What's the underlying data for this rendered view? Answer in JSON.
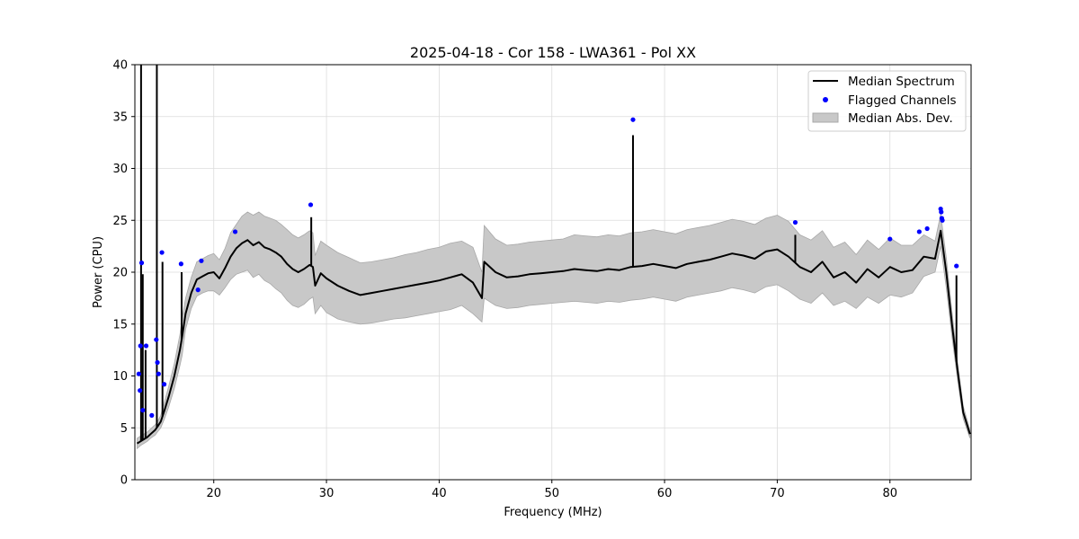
{
  "chart_data": {
    "type": "line",
    "title": "2025-04-18 - Cor 158 - LWA361 - Pol XX",
    "xlabel": "Frequency (MHz)",
    "ylabel": "Power (CPU)",
    "xlim": [
      13,
      87.2
    ],
    "ylim": [
      0,
      40
    ],
    "xticks": [
      20,
      30,
      40,
      50,
      60,
      70,
      80
    ],
    "yticks": [
      0,
      5,
      10,
      15,
      20,
      25,
      30,
      35,
      40
    ],
    "grid": true,
    "legend_placement": "top-right",
    "colors": {
      "median": "#000000",
      "flagged": "#0000ff",
      "mad_fill": "#c8c8c8",
      "mad_edge": "#a8a8a8"
    },
    "series": [
      {
        "name": "Median Spectrum",
        "kind": "line",
        "x": [
          13.2,
          13.5,
          13.8,
          14.1,
          14.4,
          14.8,
          15.0,
          15.3,
          15.6,
          16.0,
          16.5,
          17.0,
          17.2,
          17.5,
          18.0,
          18.5,
          19.0,
          19.5,
          20.0,
          20.5,
          21.0,
          21.5,
          22.0,
          22.5,
          23.0,
          23.5,
          24.0,
          24.5,
          25.0,
          25.5,
          26.0,
          26.5,
          27.0,
          27.5,
          28.0,
          28.5,
          28.8,
          29.0,
          29.5,
          30.0,
          31.0,
          32.0,
          33.0,
          34.0,
          35.0,
          36.0,
          37.0,
          38.0,
          39.0,
          40.0,
          41.0,
          42.0,
          43.0,
          43.8,
          44.0,
          45.0,
          46.0,
          47.0,
          48.0,
          49.0,
          50.0,
          51.0,
          52.0,
          53.0,
          54.0,
          55.0,
          56.0,
          57.0,
          58.0,
          59.0,
          60.0,
          61.0,
          62.0,
          63.0,
          64.0,
          65.0,
          66.0,
          67.0,
          68.0,
          69.0,
          70.0,
          71.0,
          72.0,
          73.0,
          74.0,
          75.0,
          76.0,
          77.0,
          78.0,
          79.0,
          80.0,
          81.0,
          82.0,
          83.0,
          84.0,
          84.5,
          85.0,
          85.5,
          86.0,
          86.5,
          87.1
        ],
        "values": [
          3.5,
          3.7,
          3.9,
          4.1,
          4.4,
          4.8,
          5.1,
          5.6,
          6.6,
          8.0,
          10.0,
          12.5,
          13.8,
          16.0,
          18.0,
          19.3,
          19.6,
          19.9,
          20.0,
          19.4,
          20.4,
          21.5,
          22.3,
          22.8,
          23.1,
          22.6,
          22.9,
          22.4,
          22.2,
          21.9,
          21.5,
          20.8,
          20.3,
          20.0,
          20.3,
          20.7,
          20.5,
          18.7,
          19.9,
          19.4,
          18.7,
          18.2,
          17.8,
          18.0,
          18.2,
          18.4,
          18.6,
          18.8,
          19.0,
          19.2,
          19.5,
          19.8,
          19.0,
          17.5,
          21.0,
          20.0,
          19.5,
          19.6,
          19.8,
          19.9,
          20.0,
          20.1,
          20.3,
          20.2,
          20.1,
          20.3,
          20.2,
          20.5,
          20.6,
          20.8,
          20.6,
          20.4,
          20.8,
          21.0,
          21.2,
          21.5,
          21.8,
          21.6,
          21.3,
          22.0,
          22.2,
          21.5,
          20.5,
          20.0,
          21.0,
          19.5,
          20.0,
          19.0,
          20.3,
          19.5,
          20.5,
          20.0,
          20.2,
          21.5,
          21.3,
          24.0,
          20.0,
          15.0,
          10.5,
          6.5,
          4.4
        ]
      },
      {
        "name": "Flagged Channels",
        "kind": "scatter",
        "x": [
          13.35,
          13.45,
          13.5,
          13.6,
          13.7,
          14.0,
          14.5,
          14.9,
          15.0,
          15.1,
          15.4,
          15.6,
          17.1,
          18.6,
          18.9,
          21.9,
          28.6,
          57.2,
          71.6,
          80.0,
          82.6,
          83.3,
          84.5,
          84.55,
          84.6,
          84.65,
          85.9
        ],
        "values": [
          10.2,
          8.6,
          12.9,
          20.9,
          6.7,
          12.9,
          6.2,
          13.5,
          11.3,
          10.2,
          21.9,
          9.2,
          20.8,
          18.3,
          21.1,
          23.9,
          26.5,
          34.7,
          24.8,
          23.2,
          23.9,
          24.2,
          26.1,
          25.8,
          25.2,
          25.0,
          20.6
        ]
      },
      {
        "name": "Median Abs. Dev.",
        "kind": "band",
        "x": [
          13.2,
          13.5,
          13.8,
          14.1,
          14.4,
          14.8,
          15.0,
          15.3,
          15.6,
          16.0,
          16.5,
          17.0,
          17.2,
          17.5,
          18.0,
          18.5,
          19.0,
          19.5,
          20.0,
          20.5,
          21.0,
          21.5,
          22.0,
          22.5,
          23.0,
          23.5,
          24.0,
          24.5,
          25.0,
          25.5,
          26.0,
          26.5,
          27.0,
          27.5,
          28.0,
          28.5,
          28.8,
          29.0,
          29.5,
          30.0,
          31.0,
          32.0,
          33.0,
          34.0,
          35.0,
          36.0,
          37.0,
          38.0,
          39.0,
          40.0,
          41.0,
          42.0,
          43.0,
          43.8,
          44.0,
          45.0,
          46.0,
          47.0,
          48.0,
          49.0,
          50.0,
          51.0,
          52.0,
          53.0,
          54.0,
          55.0,
          56.0,
          57.0,
          58.0,
          59.0,
          60.0,
          61.0,
          62.0,
          63.0,
          64.0,
          65.0,
          66.0,
          67.0,
          68.0,
          69.0,
          70.0,
          71.0,
          72.0,
          73.0,
          74.0,
          75.0,
          76.0,
          77.0,
          78.0,
          79.0,
          80.0,
          81.0,
          82.0,
          83.0,
          84.0,
          84.5,
          85.0,
          85.5,
          86.0,
          86.5,
          87.1
        ],
        "lower": [
          3.0,
          3.3,
          3.5,
          3.7,
          4.0,
          4.3,
          4.6,
          5.0,
          5.8,
          7.0,
          8.8,
          11.0,
          12.0,
          14.5,
          16.5,
          17.7,
          18.0,
          18.2,
          18.2,
          17.8,
          18.5,
          19.3,
          19.8,
          20.0,
          20.2,
          19.5,
          19.8,
          19.2,
          18.9,
          18.4,
          18.0,
          17.3,
          16.8,
          16.6,
          16.9,
          17.4,
          17.6,
          16.0,
          16.8,
          16.1,
          15.5,
          15.2,
          15.0,
          15.1,
          15.3,
          15.5,
          15.6,
          15.8,
          16.0,
          16.2,
          16.4,
          16.8,
          16.0,
          15.2,
          17.5,
          16.8,
          16.5,
          16.6,
          16.8,
          16.9,
          17.0,
          17.1,
          17.2,
          17.1,
          17.0,
          17.2,
          17.1,
          17.3,
          17.4,
          17.6,
          17.4,
          17.2,
          17.6,
          17.8,
          18.0,
          18.2,
          18.5,
          18.3,
          18.0,
          18.6,
          18.8,
          18.2,
          17.4,
          17.0,
          18.0,
          16.8,
          17.2,
          16.5,
          17.6,
          17.0,
          17.8,
          17.6,
          18.0,
          19.6,
          20.0,
          22.5,
          18.5,
          13.8,
          9.6,
          5.9,
          4.0
        ],
        "upper": [
          4.0,
          4.2,
          4.4,
          4.6,
          4.9,
          5.3,
          5.6,
          6.2,
          7.4,
          9.0,
          11.2,
          14.0,
          15.6,
          17.5,
          19.5,
          21.0,
          21.3,
          21.6,
          21.8,
          21.2,
          22.3,
          23.8,
          24.6,
          25.4,
          25.8,
          25.5,
          25.8,
          25.4,
          25.2,
          25.0,
          24.6,
          24.1,
          23.6,
          23.3,
          23.6,
          24.0,
          23.8,
          21.6,
          23.0,
          22.6,
          21.9,
          21.4,
          20.9,
          21.0,
          21.2,
          21.4,
          21.7,
          21.9,
          22.2,
          22.4,
          22.8,
          23.0,
          22.4,
          20.0,
          24.5,
          23.2,
          22.6,
          22.7,
          22.9,
          23.0,
          23.1,
          23.2,
          23.6,
          23.5,
          23.4,
          23.6,
          23.5,
          23.8,
          23.9,
          24.1,
          23.9,
          23.7,
          24.1,
          24.3,
          24.5,
          24.8,
          25.1,
          24.9,
          24.6,
          25.2,
          25.5,
          24.9,
          23.6,
          23.1,
          24.0,
          22.4,
          22.9,
          21.7,
          23.1,
          22.2,
          23.3,
          22.6,
          22.6,
          23.6,
          23.0,
          25.6,
          21.4,
          16.2,
          11.3,
          7.1,
          4.8
        ]
      }
    ],
    "spikes": [
      {
        "x": 13.55,
        "value": 40.0
      },
      {
        "x": 13.7,
        "value": 19.8
      },
      {
        "x": 13.95,
        "value": 12.5
      },
      {
        "x": 14.95,
        "value": 40.0
      },
      {
        "x": 15.45,
        "value": 21.0
      },
      {
        "x": 17.15,
        "value": 20.0
      },
      {
        "x": 28.65,
        "value": 25.3
      },
      {
        "x": 57.2,
        "value": 33.2
      },
      {
        "x": 71.6,
        "value": 23.6
      },
      {
        "x": 85.9,
        "value": 19.7
      }
    ]
  }
}
